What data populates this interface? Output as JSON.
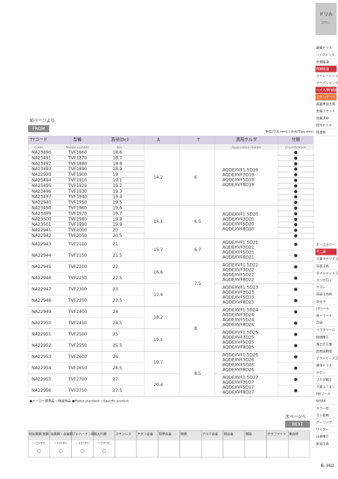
{
  "sidebar": {
    "tab": "ドリル",
    "tab_en": "DRILL",
    "items": [
      {
        "text": "超硬ドリル"
      },
      {
        "text": "ハイスドリル"
      },
      {
        "text": "外部給油"
      },
      {
        "text": "内部給油",
        "hl": "#d2343f"
      },
      {
        "text": "ストレートシャンク"
      },
      {
        "text": "テーパシャンク"
      },
      {
        "text": "ハイス/鋼/超硬",
        "hl": "#d2343f"
      },
      {
        "text": "スタンダード",
        "hl": "#e8763a"
      },
      {
        "text": "高能率加工用"
      },
      {
        "text": "先端フラット"
      },
      {
        "text": "位置決め"
      },
      {
        "text": "段付ドリル"
      },
      {
        "text": "周速別"
      }
    ],
    "brands": [
      {
        "text": "オーエスジー"
      },
      {
        "text": "不二越",
        "hl": "#d2343f"
      },
      {
        "text": "三菱マテリアル"
      },
      {
        "text": "日進工具"
      },
      {
        "text": "ダイジェット工業"
      },
      {
        "text": "タンガロイ"
      },
      {
        "text": "ヤマト"
      },
      {
        "text": "日研工作所"
      },
      {
        "text": "京セラ"
      },
      {
        "text": "FPツール"
      },
      {
        "text": "島一ツール"
      },
      {
        "text": "戸研"
      },
      {
        "text": "イワタツール"
      },
      {
        "text": "岡崎精工"
      },
      {
        "text": "富士元工業"
      },
      {
        "text": "高周波精密"
      },
      {
        "text": "ビクトリーズ工業"
      },
      {
        "text": "東洋ドリル"
      },
      {
        "text": "ギケン"
      },
      {
        "text": "フクダ精工"
      },
      {
        "text": "三菱ユニオン"
      },
      {
        "text": "MAツール"
      },
      {
        "text": "WEBA"
      },
      {
        "text": "エラー社"
      },
      {
        "text": "スミ銘柄"
      },
      {
        "text": "グーリング"
      },
      {
        "text": "ワルター"
      },
      {
        "text": "山本精工"
      },
      {
        "text": "新潟工具"
      }
    ]
  },
  "from": {
    "label": "前ページより",
    "button": "FROM"
  },
  "unit": "単位(寸法:mm) / Unit(Size:mm)",
  "table": {
    "headers": [
      "TYコード",
      "型番",
      "直径(Dc)",
      "A",
      "T",
      "適用ホルダ",
      "分類"
    ],
    "headers_en": [
      "Code",
      "Model number",
      "Dia.",
      "",
      "",
      "Application Holder",
      "Classification"
    ],
    "sections": [
      {
        "T": "6",
        "groups": [
          {
            "A": "14.2",
            "holders": [
              "AQDEXVF1.5D19",
              "AQDEXVF3D19",
              "AQDEXVF5D19",
              "AQDEXVF8D19"
            ],
            "rows": [
              [
                "NA23490",
                "TVF1860",
                "18.6",
                "●"
              ],
              [
                "NA23491",
                "TVF1870",
                "18.7",
                "●"
              ],
              [
                "NA23492",
                "TVF1880",
                "18.8",
                "●"
              ],
              [
                "NA23493",
                "TVF1890",
                "18.9",
                "●"
              ],
              [
                "NA22939",
                "TVF1900",
                "19",
                "●"
              ],
              [
                "NA23494",
                "TVF1910",
                "19.1",
                "●"
              ],
              [
                "NA23495",
                "TVF1920",
                "19.2",
                "●"
              ],
              [
                "NA23496",
                "TVF1930",
                "19.3",
                "●"
              ],
              [
                "NA23497",
                "TVF1940",
                "19.4",
                "●"
              ],
              [
                "NA22940",
                "TVF1950",
                "19.5",
                "●"
              ]
            ]
          }
        ]
      },
      {
        "T": "6.5",
        "groups": [
          {
            "A": "15.1",
            "holders": [
              "AQDEXVF1.5D20",
              "AQDEXVF3D20",
              "AQDEXVF5D20",
              "AQDEXVF8D20"
            ],
            "rows": [
              [
                "NA23498",
                "TVF1960",
                "19.6",
                "●"
              ],
              [
                "NA23499",
                "TVF1970",
                "19.7",
                "●"
              ],
              [
                "NA23500",
                "TVF1980",
                "19.8",
                "●"
              ],
              [
                "NA23501",
                "TVF1990",
                "19.9",
                "●"
              ],
              [
                "NA22941",
                "TVF2000",
                "20",
                "●"
              ],
              [
                "NA22942",
                "TVF2050",
                "20.5",
                "●"
              ]
            ]
          }
        ]
      },
      {
        "T": "6.7",
        "groups": [
          {
            "A": "15.7",
            "holders": [
              "AQDEXVF1.5D21",
              "AQDEXVF3D21",
              "AQDEXVF5D21",
              "AQDEXVF8D21"
            ],
            "rows": [
              [
                "NA22943",
                "TVF2100",
                "21",
                "●"
              ],
              [
                "NA22944",
                "TVF2150",
                "21.5",
                "●"
              ]
            ]
          }
        ]
      },
      {
        "T": "7.5",
        "groups": [
          {
            "A": "16.6",
            "holders": [
              "AQDEXVF1.5D22",
              "AQDEXVF3D22",
              "AQDEXVF5D22",
              "AQDEXVF8D22"
            ],
            "rows": [
              [
                "NA22945",
                "TVF2200",
                "22",
                "●"
              ],
              [
                "NA22946",
                "TVF2250",
                "22.5",
                "●"
              ]
            ]
          },
          {
            "A": "17.4",
            "holders": [
              "AQDEXVF1.5D23",
              "AQDEXVF3D23",
              "AQDEXVF5D23",
              "AQDEXVF8D23"
            ],
            "rows": [
              [
                "NA22947",
                "TVF2300",
                "23",
                "●"
              ],
              [
                "NA22948",
                "TVF2350",
                "23.5",
                "●"
              ]
            ]
          }
        ]
      },
      {
        "T": "8",
        "groups": [
          {
            "A": "18.2",
            "holders": [
              "AQDEXVF1.5D24",
              "AQDEXVF3D24",
              "AQDEXVF5D24",
              "AQDEXVF8D24"
            ],
            "rows": [
              [
                "NA22949",
                "TVF2400",
                "24",
                "●"
              ],
              [
                "NA22950",
                "TVF2450",
                "24.5",
                "●"
              ]
            ]
          },
          {
            "A": "19.1",
            "holders": [
              "AQDEXVF1.5D25",
              "AQDEXVF3D25",
              "AQDEXVF5D25",
              "AQDEXVF8D25"
            ],
            "rows": [
              [
                "NA22951",
                "TVF2500",
                "25",
                "●"
              ],
              [
                "NA22952",
                "TVF2550",
                "25.5",
                "●"
              ]
            ]
          }
        ]
      },
      {
        "T": "8.5",
        "groups": [
          {
            "A": "19.7",
            "holders": [
              "AQDEXVF1.5D26",
              "AQDEXVF3D26",
              "AQDEXVF5D26",
              "AQDEXVF8D26"
            ],
            "rows": [
              [
                "NA22953",
                "TVF2600",
                "26",
                "●"
              ],
              [
                "NA22954",
                "TVF2650",
                "26.5",
                "●"
              ]
            ]
          },
          {
            "A": "20.4",
            "holders": [
              "AQDEXVF1.5D27",
              "AQDEXVF3D27",
              "AQDEXVF5D27",
              "AQDEXVF8D27"
            ],
            "rows": [
              [
                "NA22955",
                "TVF2700",
                "27",
                "●"
              ],
              [
                "NA22956",
                "TVF2750",
                "27.5",
                "●"
              ]
            ]
          }
        ]
      }
    ]
  },
  "legend": "●メーカー標準品 ○特定商品 ●Maker standard ○Specific product",
  "next": {
    "label": "次ページへ",
    "button": "NEXT"
  },
  "materials": {
    "names": [
      "低炭素鋼 軟鋼",
      "炭素鋼・合金鋼",
      "プレハードン鋼",
      "焼入れ鋼",
      "ステンレス",
      "チタン合金",
      "耐熱合金",
      "鋳鉄",
      "アルミ合金",
      "銅合金",
      "樹脂",
      "グラファイト",
      "複合材"
    ],
    "hardness": [
      "～25HRC",
      "～40HRC",
      "～45HRC",
      "～55HRC",
      "",
      "",
      "",
      "",
      "",
      "",
      "",
      "",
      ""
    ],
    "marks": [
      "○",
      "○",
      "○",
      "○",
      "",
      "",
      "",
      "",
      "",
      "",
      "",
      "",
      ""
    ]
  },
  "page_number": "B-360"
}
